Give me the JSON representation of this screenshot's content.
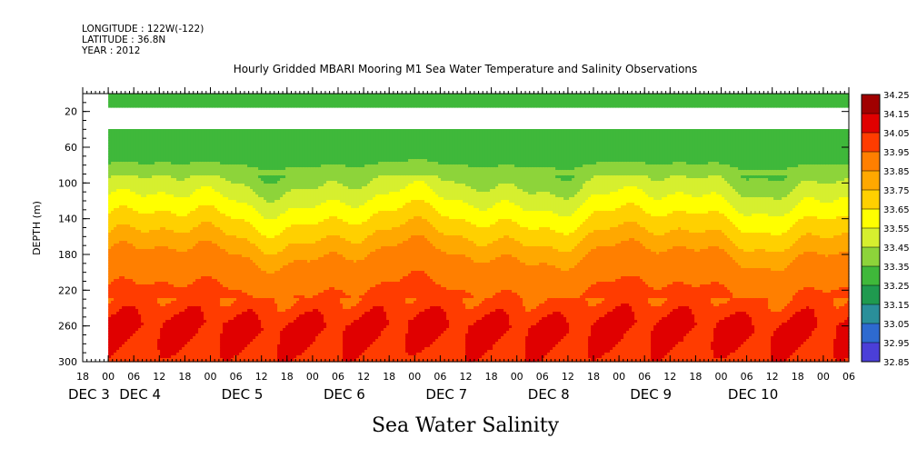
{
  "header": {
    "longitude": "LONGITUDE : 122W(-122)",
    "latitude": "LATITUDE : 36.8N",
    "year": "YEAR : 2012",
    "title": "Hourly Gridded MBARI Mooring M1 Sea Water Temperature and Salinity Observations"
  },
  "bottom_label": "Sea Water Salinity",
  "chart_data": {
    "type": "heatmap",
    "title": "Hourly Gridded MBARI Mooring M1 Sea Water Temperature and Salinity Observations",
    "xlabel": "",
    "ylabel": "DEPTH (m)",
    "xlim_hours": [
      -6,
      174
    ],
    "ylim": [
      300,
      0
    ],
    "y_inverted": true,
    "y_ticks": [
      20,
      60,
      100,
      140,
      180,
      220,
      260,
      300
    ],
    "x_hour_ticks": [
      {
        "hour": -6,
        "label": "18"
      },
      {
        "hour": 0,
        "label": "00"
      },
      {
        "hour": 6,
        "label": "06"
      },
      {
        "hour": 12,
        "label": "12"
      },
      {
        "hour": 18,
        "label": "18"
      },
      {
        "hour": 24,
        "label": "00"
      },
      {
        "hour": 30,
        "label": "06"
      },
      {
        "hour": 36,
        "label": "12"
      },
      {
        "hour": 42,
        "label": "18"
      },
      {
        "hour": 48,
        "label": "00"
      },
      {
        "hour": 54,
        "label": "06"
      },
      {
        "hour": 60,
        "label": "12"
      },
      {
        "hour": 66,
        "label": "18"
      },
      {
        "hour": 72,
        "label": "00"
      },
      {
        "hour": 78,
        "label": "06"
      },
      {
        "hour": 84,
        "label": "12"
      },
      {
        "hour": 90,
        "label": "18"
      },
      {
        "hour": 96,
        "label": "00"
      },
      {
        "hour": 102,
        "label": "06"
      },
      {
        "hour": 108,
        "label": "12"
      },
      {
        "hour": 114,
        "label": "18"
      },
      {
        "hour": 120,
        "label": "00"
      },
      {
        "hour": 126,
        "label": "06"
      },
      {
        "hour": 132,
        "label": "12"
      },
      {
        "hour": 138,
        "label": "18"
      },
      {
        "hour": 144,
        "label": "00"
      },
      {
        "hour": 150,
        "label": "06"
      },
      {
        "hour": 156,
        "label": "12"
      },
      {
        "hour": 162,
        "label": "18"
      },
      {
        "hour": 168,
        "label": "00"
      },
      {
        "hour": 174,
        "label": "06"
      }
    ],
    "day_labels": [
      {
        "hour": 0,
        "label": "DEC 3"
      },
      {
        "hour": 24,
        "label": "DEC 4"
      },
      {
        "hour": 48,
        "label": "DEC 5"
      },
      {
        "hour": 72,
        "label": "DEC 6"
      },
      {
        "hour": 96,
        "label": "DEC 7"
      },
      {
        "hour": 120,
        "label": "DEC 8"
      },
      {
        "hour": 144,
        "label": "DEC 9"
      },
      {
        "hour": 168,
        "label": "DEC 10"
      }
    ],
    "x_day_labels_drawn": [
      {
        "hour": -6,
        "label": "DEC 3"
      },
      {
        "hour": 6,
        "label": "DEC 4"
      },
      {
        "hour": 30,
        "label": "DEC 5"
      },
      {
        "hour": 54,
        "label": "DEC 6"
      },
      {
        "hour": 78,
        "label": "DEC 7"
      },
      {
        "hour": 102,
        "label": "DEC 8"
      },
      {
        "hour": 126,
        "label": "DEC 9"
      },
      {
        "hour": 149,
        "label": "DEC 10"
      }
    ],
    "data_start_hour": 0,
    "depth_layers_m": [
      10,
      50,
      80,
      100,
      120,
      140,
      160,
      180,
      200,
      220,
      240,
      260,
      280,
      300
    ],
    "no_data_depth_range_m": [
      15,
      40
    ],
    "salinity_profile": {
      "depth": [
        10,
        50,
        80,
        100,
        120,
        140,
        160,
        180,
        200,
        220,
        240,
        260,
        280,
        300
      ],
      "salinity": [
        33.35,
        33.4,
        33.45,
        33.55,
        33.65,
        33.75,
        33.85,
        33.95,
        34.0,
        34.05,
        34.1,
        34.18,
        34.15,
        34.1
      ]
    },
    "colorbar": {
      "levels": [
        32.85,
        32.95,
        33.05,
        33.15,
        33.25,
        33.35,
        33.45,
        33.55,
        33.65,
        33.75,
        33.85,
        33.95,
        34.05,
        34.15,
        34.25
      ],
      "labels_top_to_bottom": [
        "34.25",
        "34.15",
        "34.05",
        "33.95",
        "33.85",
        "33.75",
        "33.65",
        "33.55",
        "33.45",
        "33.35",
        "33.25",
        "33.15",
        "33.05",
        "32.95",
        "32.85"
      ],
      "colors_low_to_high": [
        "#cc00ff",
        "#8a2be2",
        "#4b3fd8",
        "#2e6ad0",
        "#2a8f9a",
        "#1f9a4f",
        "#3fb83a",
        "#8dd43a",
        "#d6ef2f",
        "#ffff00",
        "#ffd000",
        "#ffa800",
        "#ff7f00",
        "#ff3c00",
        "#e00000",
        "#a00000"
      ]
    }
  }
}
